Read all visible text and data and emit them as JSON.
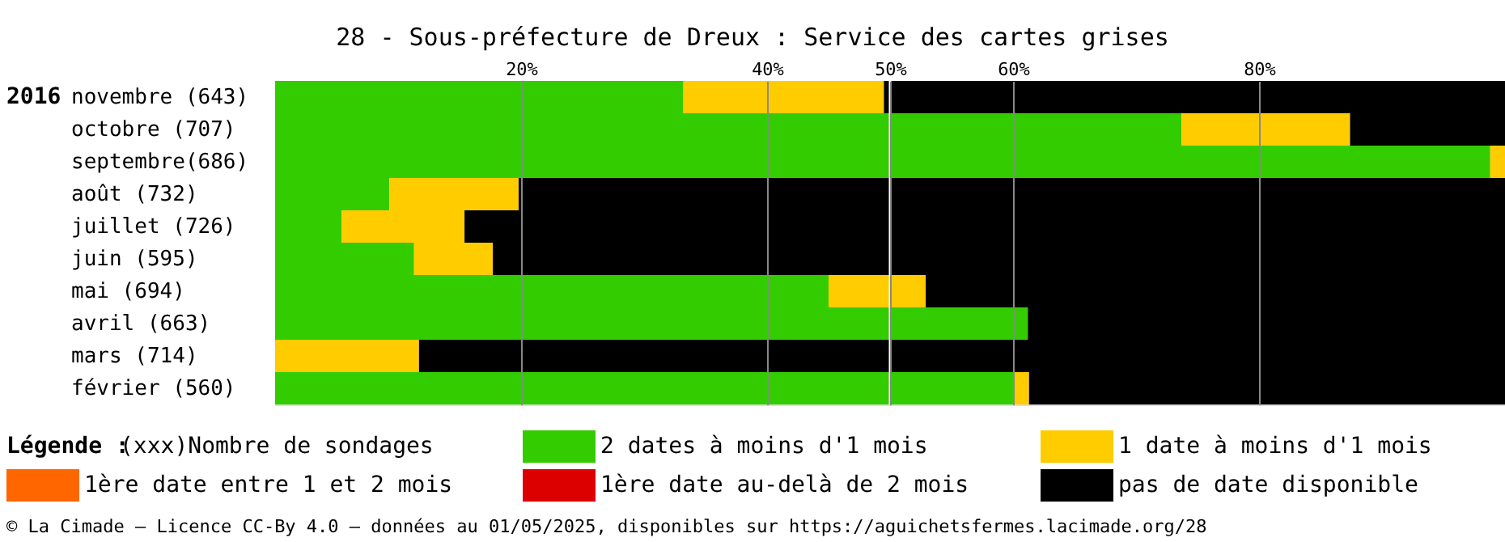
{
  "chart_data": {
    "type": "bar",
    "orientation": "horizontal",
    "stacked": true,
    "title": "28 - Sous-préfecture de Dreux : Service des cartes grises",
    "categories": [
      "novembre (643)",
      "octobre (707)",
      "septembre(686)",
      "août (732)",
      "juillet (726)",
      "juin (595)",
      "mai (694)",
      "avril (663)",
      "mars (714)",
      "février (560)"
    ],
    "series": [
      {
        "name": "2 dates à moins d'1 mois",
        "color": "#33cc00",
        "values": [
          33.2,
          73.7,
          98.8,
          9.3,
          5.4,
          11.3,
          45.0,
          61.2,
          0,
          60.0
        ]
      },
      {
        "name": "1 date à moins d'1 mois",
        "color": "#ffcc00",
        "values": [
          16.3,
          13.7,
          1.2,
          10.5,
          10.0,
          6.4,
          7.9,
          0,
          11.7,
          1.3
        ]
      },
      {
        "name": "1ère date entre 1 et 2 mois",
        "color": "#ff6600",
        "values": [
          0,
          0,
          0,
          0,
          0,
          0,
          0,
          0,
          0,
          0
        ]
      },
      {
        "name": "1ère date au-delà de 2 mois",
        "color": "#dd0000",
        "values": [
          0,
          0,
          0,
          0,
          0,
          0,
          0,
          0,
          0,
          0
        ]
      },
      {
        "name": "pas de date disponible",
        "color": "#000000",
        "values": [
          50.5,
          12.6,
          0,
          80.2,
          84.6,
          82.3,
          47.1,
          38.8,
          88.3,
          38.7
        ]
      }
    ],
    "xlim": [
      0,
      100
    ],
    "xticks": [
      {
        "value": 20,
        "label": "20%"
      },
      {
        "value": 40,
        "label": "40%"
      },
      {
        "value": 50,
        "label": "50%"
      },
      {
        "value": 60,
        "label": "60%"
      },
      {
        "value": 80,
        "label": "80%"
      }
    ],
    "grid": "x",
    "ref_lines": [
      {
        "axis": "x",
        "value": 50,
        "color": "#ffffff"
      }
    ],
    "legend": "bottom",
    "legend_title": "Légende :",
    "annotations": [
      "2016",
      "(xxx)Nombre de sondages",
      "© La Cimade — Licence CC-By 4.0 — données au 01/05/2025, disponibles sur https://aguichetsfermes.lacimade.org/28"
    ]
  }
}
